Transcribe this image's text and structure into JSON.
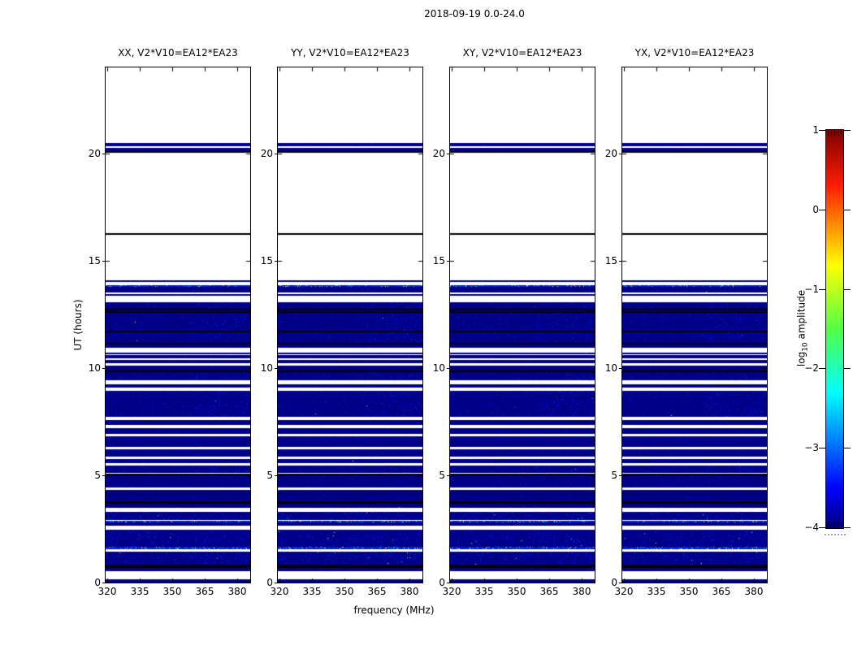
{
  "chart_data": {
    "type": "heatmap",
    "title": "2018-09-19 0.0-24.0",
    "panels": [
      {
        "id": "XX",
        "title": "XX, V2*V10=EA12*EA23"
      },
      {
        "id": "YY",
        "title": "YY, V2*V10=EA12*EA23"
      },
      {
        "id": "XY",
        "title": "XY, V2*V10=EA12*EA23"
      },
      {
        "id": "YX",
        "title": "YX, V2*V10=EA12*EA23"
      }
    ],
    "x_axis": {
      "label": "frequency (MHz)",
      "ticks": [
        320,
        335,
        350,
        365,
        380
      ],
      "tick_labels": [
        "320",
        "335",
        "350",
        "365",
        "380"
      ],
      "range": [
        319.4,
        386.1
      ],
      "unit": "MHz"
    },
    "y_axis": {
      "label": "UT (hours)",
      "ticks": [
        0,
        5,
        10,
        15,
        20
      ],
      "tick_labels": [
        "0",
        "5",
        "10",
        "15",
        "20"
      ],
      "range": [
        0,
        24
      ],
      "unit": "hours"
    },
    "colorbar": {
      "label_prefix": "log",
      "label_sub": "10",
      "label_suffix": " amplitude",
      "ticks": [
        1,
        0,
        -1,
        -2,
        -3,
        -4
      ],
      "tick_labels": [
        "1",
        "0",
        "−1",
        "−2",
        "−3",
        "−4"
      ],
      "range": [
        -4,
        1
      ],
      "colormap": "jet",
      "gradient": [
        {
          "pos": 0.0,
          "color": "#00007f"
        },
        {
          "pos": 0.1,
          "color": "#0000ff"
        },
        {
          "pos": 0.34,
          "color": "#00ffff"
        },
        {
          "pos": 0.5,
          "color": "#52ff46"
        },
        {
          "pos": 0.66,
          "color": "#ffff00"
        },
        {
          "pos": 0.86,
          "color": "#ff1c00"
        },
        {
          "pos": 1.0,
          "color": "#7f0000"
        }
      ]
    },
    "colors": {
      "data_base": "#000087",
      "speckle_1": "#0000b6",
      "speckle_2": "#0021e6",
      "rfi_base": "#0016c8",
      "rfi_bright": "#002df0",
      "rfi_dim": "#000d9e",
      "flag_line": "#000000",
      "background": "#ffffff",
      "dot_colors": [
        "#00e6ff",
        "#30ff90",
        "#e8ff00",
        "#ffb300"
      ]
    },
    "bands": [
      {
        "t": 20.48,
        "b": 20.31,
        "k": "data",
        "n": "low"
      },
      {
        "t": 20.26,
        "b": 20.1,
        "k": "data",
        "n": "low"
      },
      {
        "t": 20.09,
        "b": 20.03,
        "k": "flag"
      },
      {
        "t": 16.27,
        "b": 16.2,
        "k": "flag"
      },
      {
        "t": 14.08,
        "b": 14.02,
        "k": "data",
        "n": "low"
      },
      {
        "t": 13.87,
        "b": 13.77,
        "k": "rfi"
      },
      {
        "t": 13.77,
        "b": 13.51,
        "k": "data",
        "n": "low"
      },
      {
        "t": 13.45,
        "b": 13.36,
        "k": "data",
        "n": "low"
      },
      {
        "t": 13.07,
        "b": 12.76,
        "k": "data",
        "n": "mid"
      },
      {
        "t": 12.75,
        "b": 12.7,
        "k": "flag"
      },
      {
        "t": 12.7,
        "b": 12.63,
        "k": "data",
        "n": "low"
      },
      {
        "t": 12.63,
        "b": 12.57,
        "k": "flag"
      },
      {
        "t": 12.57,
        "b": 11.75,
        "k": "data",
        "n": "mid"
      },
      {
        "t": 11.74,
        "b": 11.65,
        "k": "flag"
      },
      {
        "t": 11.65,
        "b": 11.18,
        "k": "data",
        "n": "mid"
      },
      {
        "t": 11.18,
        "b": 11.08,
        "k": "flag"
      },
      {
        "t": 11.08,
        "b": 10.93,
        "k": "data",
        "n": "low"
      },
      {
        "t": 10.72,
        "b": 10.63,
        "k": "data",
        "n": "low"
      },
      {
        "t": 10.59,
        "b": 10.45,
        "k": "data",
        "n": "low"
      },
      {
        "t": 10.36,
        "b": 10.21,
        "k": "data",
        "n": "low"
      },
      {
        "t": 10.11,
        "b": 9.89,
        "k": "data",
        "n": "low"
      },
      {
        "t": 9.89,
        "b": 9.79,
        "k": "flag"
      },
      {
        "t": 9.79,
        "b": 9.41,
        "k": "data",
        "n": "mid"
      },
      {
        "t": 9.22,
        "b": 9.07,
        "k": "data",
        "n": "low"
      },
      {
        "t": 8.95,
        "b": 7.71,
        "k": "data",
        "n": "mid"
      },
      {
        "t": 7.56,
        "b": 7.33,
        "k": "data",
        "n": "low"
      },
      {
        "t": 7.2,
        "b": 6.93,
        "k": "data",
        "n": "low"
      },
      {
        "t": 6.8,
        "b": 6.32,
        "k": "data",
        "n": "low"
      },
      {
        "t": 6.19,
        "b": 5.88,
        "k": "data",
        "n": "low"
      },
      {
        "t": 5.75,
        "b": 5.56,
        "k": "data",
        "n": "low"
      },
      {
        "t": 5.44,
        "b": 5.12,
        "k": "data",
        "n": "mid"
      },
      {
        "t": 5.08,
        "b": 5.0,
        "k": "flag"
      },
      {
        "t": 5.0,
        "b": 4.43,
        "k": "data",
        "n": "low"
      },
      {
        "t": 4.3,
        "b": 4.17,
        "k": "data",
        "n": "low"
      },
      {
        "t": 4.16,
        "b": 4.11,
        "k": "flag"
      },
      {
        "t": 4.11,
        "b": 3.99,
        "k": "data",
        "n": "low"
      },
      {
        "t": 3.99,
        "b": 3.8,
        "k": "data",
        "n": "low"
      },
      {
        "t": 3.8,
        "b": 3.68,
        "k": "flag"
      },
      {
        "t": 3.68,
        "b": 3.48,
        "k": "data",
        "n": "low"
      },
      {
        "t": 3.29,
        "b": 2.92,
        "k": "data",
        "n": "high"
      },
      {
        "t": 2.89,
        "b": 2.79,
        "k": "rfi"
      },
      {
        "t": 2.79,
        "b": 2.66,
        "k": "data",
        "n": "low"
      },
      {
        "t": 2.47,
        "b": 2.35,
        "k": "data",
        "n": "low"
      },
      {
        "t": 2.35,
        "b": 1.67,
        "k": "data",
        "n": "high"
      },
      {
        "t": 1.67,
        "b": 1.56,
        "k": "rfi"
      },
      {
        "t": 1.43,
        "b": 0.83,
        "k": "data",
        "n": "high"
      },
      {
        "t": 0.83,
        "b": 0.69,
        "k": "flag"
      },
      {
        "t": 0.69,
        "b": 0.52,
        "k": "data",
        "n": "low"
      },
      {
        "t": 0.14,
        "b": 0.0,
        "k": "data",
        "n": "low"
      }
    ]
  }
}
